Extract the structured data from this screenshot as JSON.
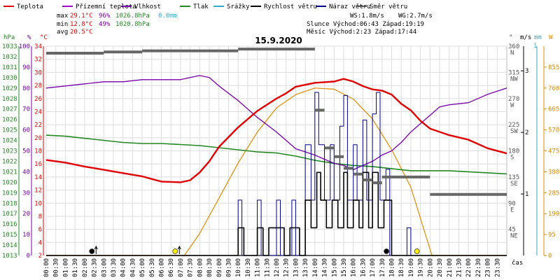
{
  "chart_data": {
    "type": "line",
    "title": "15.9.2020",
    "xlabel": "čas",
    "legend": [
      {
        "name": "Teplota",
        "color": "#e00000"
      },
      {
        "name": "Přízemní teplota",
        "color": "#aa00cc"
      },
      {
        "name": "Vlhkost",
        "color": "#7700aa"
      },
      {
        "name": "Tlak",
        "color": "#228822"
      },
      {
        "name": "Srážky",
        "color": "#33aacc"
      },
      {
        "name": "Rychlost větru",
        "color": "#000000"
      },
      {
        "name": "Náraz větru",
        "color": "#000088"
      },
      {
        "name": "Směr větru",
        "color": "#555555"
      }
    ],
    "stats": {
      "max_label": "max",
      "max_temp": "29.1°C",
      "max_hum": "96%",
      "max_pres": "1026.8hPa",
      "rain": "0.0mm",
      "min_label": "min",
      "min_temp": "12.8°C",
      "min_hum": "49%",
      "min_pres": "1020.8hPa",
      "avg_label": "avg",
      "avg_temp": "20.5°C",
      "ws": "WS:1.8m/s",
      "wg": "WG:2.7m/s",
      "sun": "Slunce Východ:06:43  Západ:19:19",
      "moon": "Měsíc  Východ:2:23   Západ:17:44"
    },
    "axis_units": {
      "hpa": "hPa",
      "pct": "%",
      "temp": "°C",
      "deg": "°",
      "ms": "m/s",
      "mm": "mm",
      "w": "W"
    },
    "x_ticks": [
      "00:00",
      "00:30",
      "01:00",
      "01:30",
      "02:00",
      "02:30",
      "03:00",
      "03:30",
      "04:00",
      "04:30",
      "05:00",
      "05:30",
      "06:00",
      "06:30",
      "07:00",
      "07:30",
      "08:00",
      "08:30",
      "09:00",
      "09:30",
      "10:00",
      "10:30",
      "11:00",
      "11:30",
      "12:00",
      "12:30",
      "13:00",
      "13:30",
      "14:00",
      "14:30",
      "15:00",
      "15:30",
      "16:00",
      "16:30",
      "17:00",
      "17:30",
      "18:00",
      "18:30",
      "19:00",
      "19:30",
      "20:00",
      "20:30",
      "21:00",
      "21:30",
      "22:00",
      "22:30",
      "23:00",
      "23:30"
    ],
    "y_hpa_ticks": [
      "1033",
      "1032",
      "1031",
      "1030",
      "1029",
      "1028",
      "1027",
      "1026",
      "1025",
      "1024",
      "1023",
      "1022",
      "1021",
      "1020",
      "1019",
      "1018",
      "1017",
      "1016",
      "1015",
      "1014",
      "1013"
    ],
    "y_pct_ticks": [
      "100",
      "90",
      "80",
      "70",
      "60",
      "50",
      "40",
      "30",
      "20",
      "10",
      "0"
    ],
    "y_temp_ticks": [
      "34",
      "32",
      "30",
      "28",
      "26",
      "24",
      "22",
      "20",
      "18",
      "16",
      "14",
      "12",
      "10",
      "8",
      "6",
      "4",
      "2"
    ],
    "y_dir_ticks": [
      {
        "deg": "360",
        "dir": "N"
      },
      {
        "deg": "315",
        "dir": "NW"
      },
      {
        "deg": "270",
        "dir": "W"
      },
      {
        "deg": "225",
        "dir": "SW"
      },
      {
        "deg": "180",
        "dir": "S"
      },
      {
        "deg": "135",
        "dir": "SE"
      },
      {
        "deg": "90",
        "dir": "E"
      },
      {
        "deg": "45",
        "dir": "NE"
      }
    ],
    "y_ms_ticks": [
      "3",
      "2",
      "1"
    ],
    "y_mm_ticks": [
      "1"
    ],
    "y_w_ticks": [
      "855",
      "760",
      "665",
      "570",
      "475",
      "380",
      "285",
      "190",
      "95",
      "0"
    ],
    "ranges": {
      "temp": [
        2,
        34
      ],
      "hum": [
        0,
        100
      ],
      "pres": [
        1013,
        1033
      ],
      "dir": [
        0,
        360
      ],
      "wind": [
        0,
        3.4
      ],
      "solar": [
        0,
        950
      ],
      "hours": [
        0,
        24
      ]
    },
    "series": {
      "temperature": [
        [
          0,
          16.6
        ],
        [
          1,
          16.2
        ],
        [
          2,
          15.6
        ],
        [
          3,
          15.1
        ],
        [
          4,
          14.6
        ],
        [
          5,
          14.1
        ],
        [
          5.5,
          13.7
        ],
        [
          6,
          13.3
        ],
        [
          7,
          13.2
        ],
        [
          7.5,
          13.5
        ],
        [
          8,
          14.7
        ],
        [
          8.5,
          16.4
        ],
        [
          9,
          18.6
        ],
        [
          10,
          21.6
        ],
        [
          11,
          24.1
        ],
        [
          12,
          26.0
        ],
        [
          12.5,
          26.8
        ],
        [
          13,
          27.8
        ],
        [
          14,
          28.4
        ],
        [
          15,
          28.6
        ],
        [
          15.5,
          29.0
        ],
        [
          16,
          28.6
        ],
        [
          16.5,
          27.9
        ],
        [
          17,
          27.4
        ],
        [
          17.5,
          27.2
        ],
        [
          18,
          26.6
        ],
        [
          18.5,
          25.2
        ],
        [
          19,
          24.2
        ],
        [
          19.5,
          22.6
        ],
        [
          20,
          21.4
        ],
        [
          21,
          20.4
        ],
        [
          22,
          19.7
        ],
        [
          23,
          18.4
        ],
        [
          24,
          17.6
        ]
      ],
      "humidity": [
        [
          0,
          80
        ],
        [
          1,
          81
        ],
        [
          2,
          82
        ],
        [
          3,
          83
        ],
        [
          4,
          83
        ],
        [
          5,
          84
        ],
        [
          6,
          84
        ],
        [
          7,
          84
        ],
        [
          7.5,
          85
        ],
        [
          8,
          86
        ],
        [
          8.5,
          85
        ],
        [
          9,
          81
        ],
        [
          10,
          74
        ],
        [
          11,
          66
        ],
        [
          12,
          59
        ],
        [
          12.5,
          55
        ],
        [
          13,
          51
        ],
        [
          14,
          48
        ],
        [
          14.5,
          46
        ],
        [
          15,
          44
        ],
        [
          15.5,
          43
        ],
        [
          16,
          41
        ],
        [
          16.5,
          43
        ],
        [
          17,
          45
        ],
        [
          17.5,
          48
        ],
        [
          18,
          50
        ],
        [
          18.5,
          54
        ],
        [
          19,
          59
        ],
        [
          19.5,
          63
        ],
        [
          20,
          67
        ],
        [
          20.5,
          71
        ],
        [
          21,
          72
        ],
        [
          22,
          73
        ],
        [
          23,
          77
        ],
        [
          24,
          80
        ]
      ],
      "pressure": [
        [
          0,
          1024.5
        ],
        [
          1,
          1024.4
        ],
        [
          2,
          1024.2
        ],
        [
          3,
          1024.0
        ],
        [
          4,
          1023.8
        ],
        [
          5,
          1023.7
        ],
        [
          6,
          1023.7
        ],
        [
          7,
          1023.6
        ],
        [
          8,
          1023.5
        ],
        [
          9,
          1023.3
        ],
        [
          10,
          1023.1
        ],
        [
          11,
          1022.9
        ],
        [
          12,
          1022.8
        ],
        [
          13,
          1022.5
        ],
        [
          14,
          1022.1
        ],
        [
          15,
          1021.8
        ],
        [
          16,
          1021.6
        ],
        [
          17,
          1021.5
        ],
        [
          18,
          1021.3
        ],
        [
          19,
          1021.1
        ],
        [
          20,
          1021.1
        ],
        [
          21,
          1021.1
        ],
        [
          22,
          1021.0
        ],
        [
          23,
          1020.9
        ],
        [
          24,
          1020.8
        ]
      ],
      "wind_speed": [
        [
          0,
          0
        ],
        [
          9.9,
          0
        ],
        [
          10,
          0.45
        ],
        [
          10.3,
          0
        ],
        [
          10.8,
          0
        ],
        [
          11,
          0.45
        ],
        [
          11.3,
          0
        ],
        [
          11.6,
          0.45
        ],
        [
          12,
          0.45
        ],
        [
          12.4,
          0
        ],
        [
          12.7,
          0.45
        ],
        [
          13.2,
          0
        ],
        [
          13.5,
          0.9
        ],
        [
          13.8,
          0.45
        ],
        [
          14.1,
          1.35
        ],
        [
          14.3,
          0.9
        ],
        [
          14.6,
          0.45
        ],
        [
          14.9,
          0.9
        ],
        [
          15.2,
          0.45
        ],
        [
          15.5,
          1.35
        ],
        [
          15.7,
          0.45
        ],
        [
          16,
          0.9
        ],
        [
          16.3,
          0.45
        ],
        [
          16.5,
          1.35
        ],
        [
          16.8,
          0.45
        ],
        [
          17,
          1.35
        ],
        [
          17.3,
          0.45
        ],
        [
          17.6,
          0.9
        ],
        [
          18,
          0
        ],
        [
          24,
          0
        ]
      ],
      "wind_gust": [
        [
          0,
          0
        ],
        [
          9.9,
          0
        ],
        [
          10,
          0.9
        ],
        [
          10.2,
          0
        ],
        [
          10.8,
          0
        ],
        [
          11,
          0.9
        ],
        [
          11.2,
          0
        ],
        [
          12,
          0.9
        ],
        [
          12.2,
          0
        ],
        [
          12.8,
          0.9
        ],
        [
          13,
          0
        ],
        [
          13.5,
          1.8
        ],
        [
          13.8,
          0.9
        ],
        [
          14,
          2.65
        ],
        [
          14.2,
          1.8
        ],
        [
          14.5,
          0.9
        ],
        [
          14.8,
          1.8
        ],
        [
          15,
          0.9
        ],
        [
          15.3,
          2.1
        ],
        [
          15.5,
          2.6
        ],
        [
          15.7,
          0.9
        ],
        [
          16,
          1.8
        ],
        [
          16.2,
          0.9
        ],
        [
          16.5,
          2.2
        ],
        [
          16.7,
          0.9
        ],
        [
          17,
          2.3
        ],
        [
          17.2,
          2.65
        ],
        [
          17.4,
          0.9
        ],
        [
          17.7,
          1.4
        ],
        [
          17.9,
          0
        ],
        [
          18.5,
          0
        ],
        [
          18.8,
          0.45
        ],
        [
          19,
          0
        ],
        [
          24,
          0
        ]
      ],
      "wind_direction": [
        [
          0,
          348
        ],
        [
          3,
          350
        ],
        [
          5,
          352
        ],
        [
          7,
          352
        ],
        [
          9,
          352
        ],
        [
          10,
          355
        ],
        [
          11,
          355
        ],
        [
          12,
          355
        ],
        [
          13,
          355
        ],
        [
          14,
          250
        ],
        [
          14.5,
          185
        ],
        [
          15,
          170
        ],
        [
          15.5,
          150
        ],
        [
          16,
          140
        ],
        [
          16.5,
          130
        ],
        [
          17,
          125
        ],
        [
          17.5,
          135
        ],
        [
          18,
          135
        ],
        [
          19,
          135
        ],
        [
          20,
          105
        ],
        [
          24,
          105
        ]
      ],
      "solar": [
        [
          0,
          0
        ],
        [
          7.2,
          0
        ],
        [
          8,
          100
        ],
        [
          9,
          260
        ],
        [
          10,
          420
        ],
        [
          11,
          560
        ],
        [
          12,
          670
        ],
        [
          13,
          730
        ],
        [
          14,
          760
        ],
        [
          15,
          755
        ],
        [
          16,
          710
        ],
        [
          17,
          620
        ],
        [
          18,
          480
        ],
        [
          19,
          310
        ],
        [
          19.6,
          140
        ],
        [
          20.1,
          0
        ],
        [
          24,
          0
        ]
      ]
    },
    "markers": [
      {
        "type": "moonrise",
        "t": 2.38
      },
      {
        "type": "sunrise",
        "t": 6.72
      },
      {
        "type": "moonset",
        "t": 17.73
      },
      {
        "type": "sunset",
        "t": 19.32
      }
    ]
  }
}
